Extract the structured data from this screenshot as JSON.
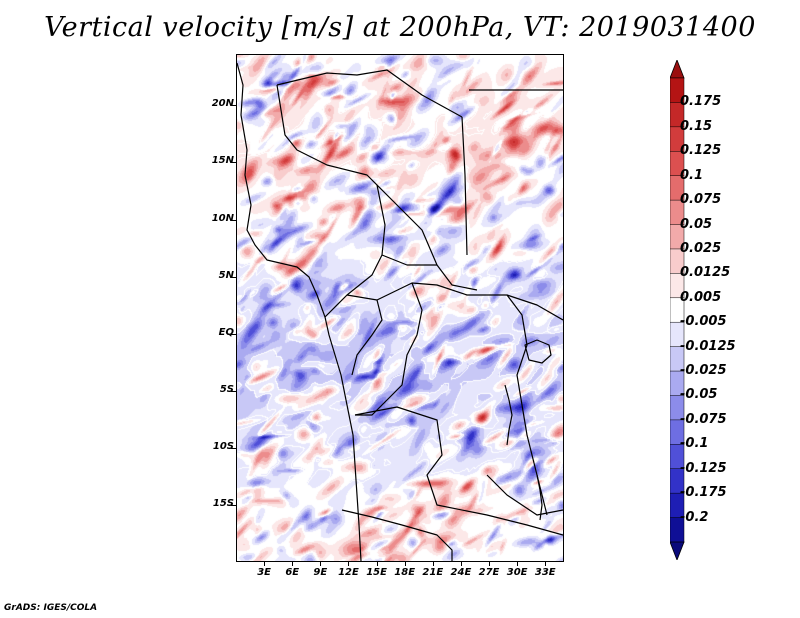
{
  "title": "Vertical velocity [m/s] at 200hPa, VT: 2019031400",
  "credit": "GrADS: IGES/COLA",
  "map": {
    "variable": "Vertical velocity",
    "units": "m/s",
    "level": "200hPa",
    "valid_time": "2019031400",
    "lon_range_deg": [
      0,
      35
    ],
    "lat_range_deg": [
      -20,
      24.5
    ],
    "lat_labels": [
      {
        "text": "20N",
        "lat": 20
      },
      {
        "text": "15N",
        "lat": 15
      },
      {
        "text": "10N",
        "lat": 10
      },
      {
        "text": "5N",
        "lat": 5
      },
      {
        "text": "EQ",
        "lat": 0
      },
      {
        "text": "5S",
        "lat": -5
      },
      {
        "text": "10S",
        "lat": -10
      },
      {
        "text": "15S",
        "lat": -15
      }
    ],
    "lon_labels": [
      {
        "text": "3E",
        "lon": 3
      },
      {
        "text": "6E",
        "lon": 6
      },
      {
        "text": "9E",
        "lon": 9
      },
      {
        "text": "12E",
        "lon": 12
      },
      {
        "text": "15E",
        "lon": 15
      },
      {
        "text": "18E",
        "lon": 18
      },
      {
        "text": "21E",
        "lon": 21
      },
      {
        "text": "24E",
        "lon": 24
      },
      {
        "text": "27E",
        "lon": 27
      },
      {
        "text": "30E",
        "lon": 30
      },
      {
        "text": "33E",
        "lon": 33
      }
    ]
  },
  "colorbar": {
    "labels": [
      "0.175",
      "0.15",
      "0.125",
      "0.1",
      "0.075",
      "0.05",
      "0.025",
      "0.0125",
      "0.005",
      "-0.005",
      "-0.0125",
      "-0.025",
      "-0.05",
      "-0.075",
      "-0.1",
      "-0.125",
      "-0.175",
      "-0.2"
    ],
    "colors": [
      "#b41414",
      "#c42828",
      "#d23c3c",
      "#dc5050",
      "#e46c6c",
      "#ec8c8c",
      "#f2aaaa",
      "#f8cccc",
      "#fce8e8",
      "#ffffff",
      "#e6e6fc",
      "#c8c8f6",
      "#aaaaf0",
      "#8c8cea",
      "#6e6ee2",
      "#5050d8",
      "#3232c8",
      "#1e1eb4",
      "#0f0f96"
    ],
    "top_color": "#9a0f0f",
    "bottom_color": "#0a0a7a"
  },
  "colors": {
    "border": "#000000",
    "contour": "#ffffff"
  }
}
